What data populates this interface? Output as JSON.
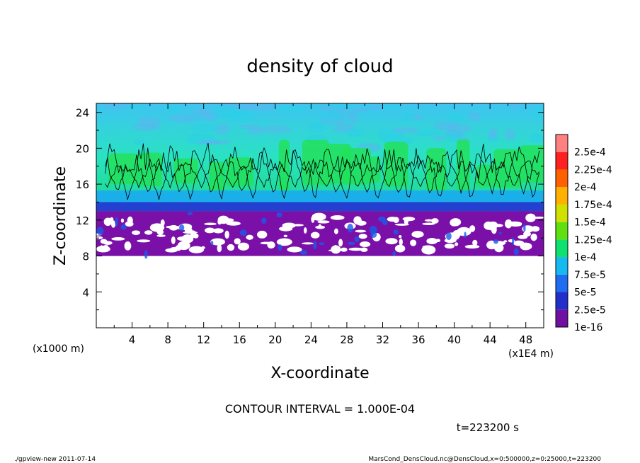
{
  "chart_data": {
    "type": "heatmap",
    "title": "density of cloud",
    "xlabel": "X-coordinate",
    "ylabel": "Z-coordinate",
    "x_unit_label": "(x1000 m)",
    "x_scale_label": "(x1E4 m)",
    "xlim": [
      0,
      50
    ],
    "ylim": [
      0,
      25
    ],
    "x_ticks": [
      "4",
      "8",
      "12",
      "16",
      "20",
      "24",
      "28",
      "32",
      "36",
      "40",
      "44",
      "48"
    ],
    "y_ticks": [
      "4",
      "8",
      "12",
      "16",
      "20",
      "24"
    ],
    "colorbar": {
      "labels": [
        "1e-16",
        "2.5e-5",
        "5e-5",
        "7.5e-5",
        "1e-4",
        "1.25e-4",
        "1.5e-4",
        "1.75e-4",
        "2e-4",
        "2.25e-4",
        "2.5e-4"
      ],
      "colors": [
        "#7010a0",
        "#2030c8",
        "#1e6cf0",
        "#18b8f0",
        "#10e070",
        "#60e010",
        "#d0e000",
        "#ffb000",
        "#ff6000",
        "#ff2020",
        "#ff8080"
      ]
    },
    "field": {
      "cloud_base_z": 8,
      "dense_layer_z": [
        13,
        14
      ],
      "cloud_top_z": 25,
      "contour_level": 0.0001,
      "contour_top_z": 21
    },
    "contour_interval": "CONTOUR INTERVAL = 1.000E-04",
    "time_label": "t=223200 s"
  },
  "footer": {
    "left": "./gpview-new 2011-07-14",
    "right": "MarsCond_DensCloud.nc@DensCloud,x=0:500000,z=0:25000,t=223200"
  }
}
